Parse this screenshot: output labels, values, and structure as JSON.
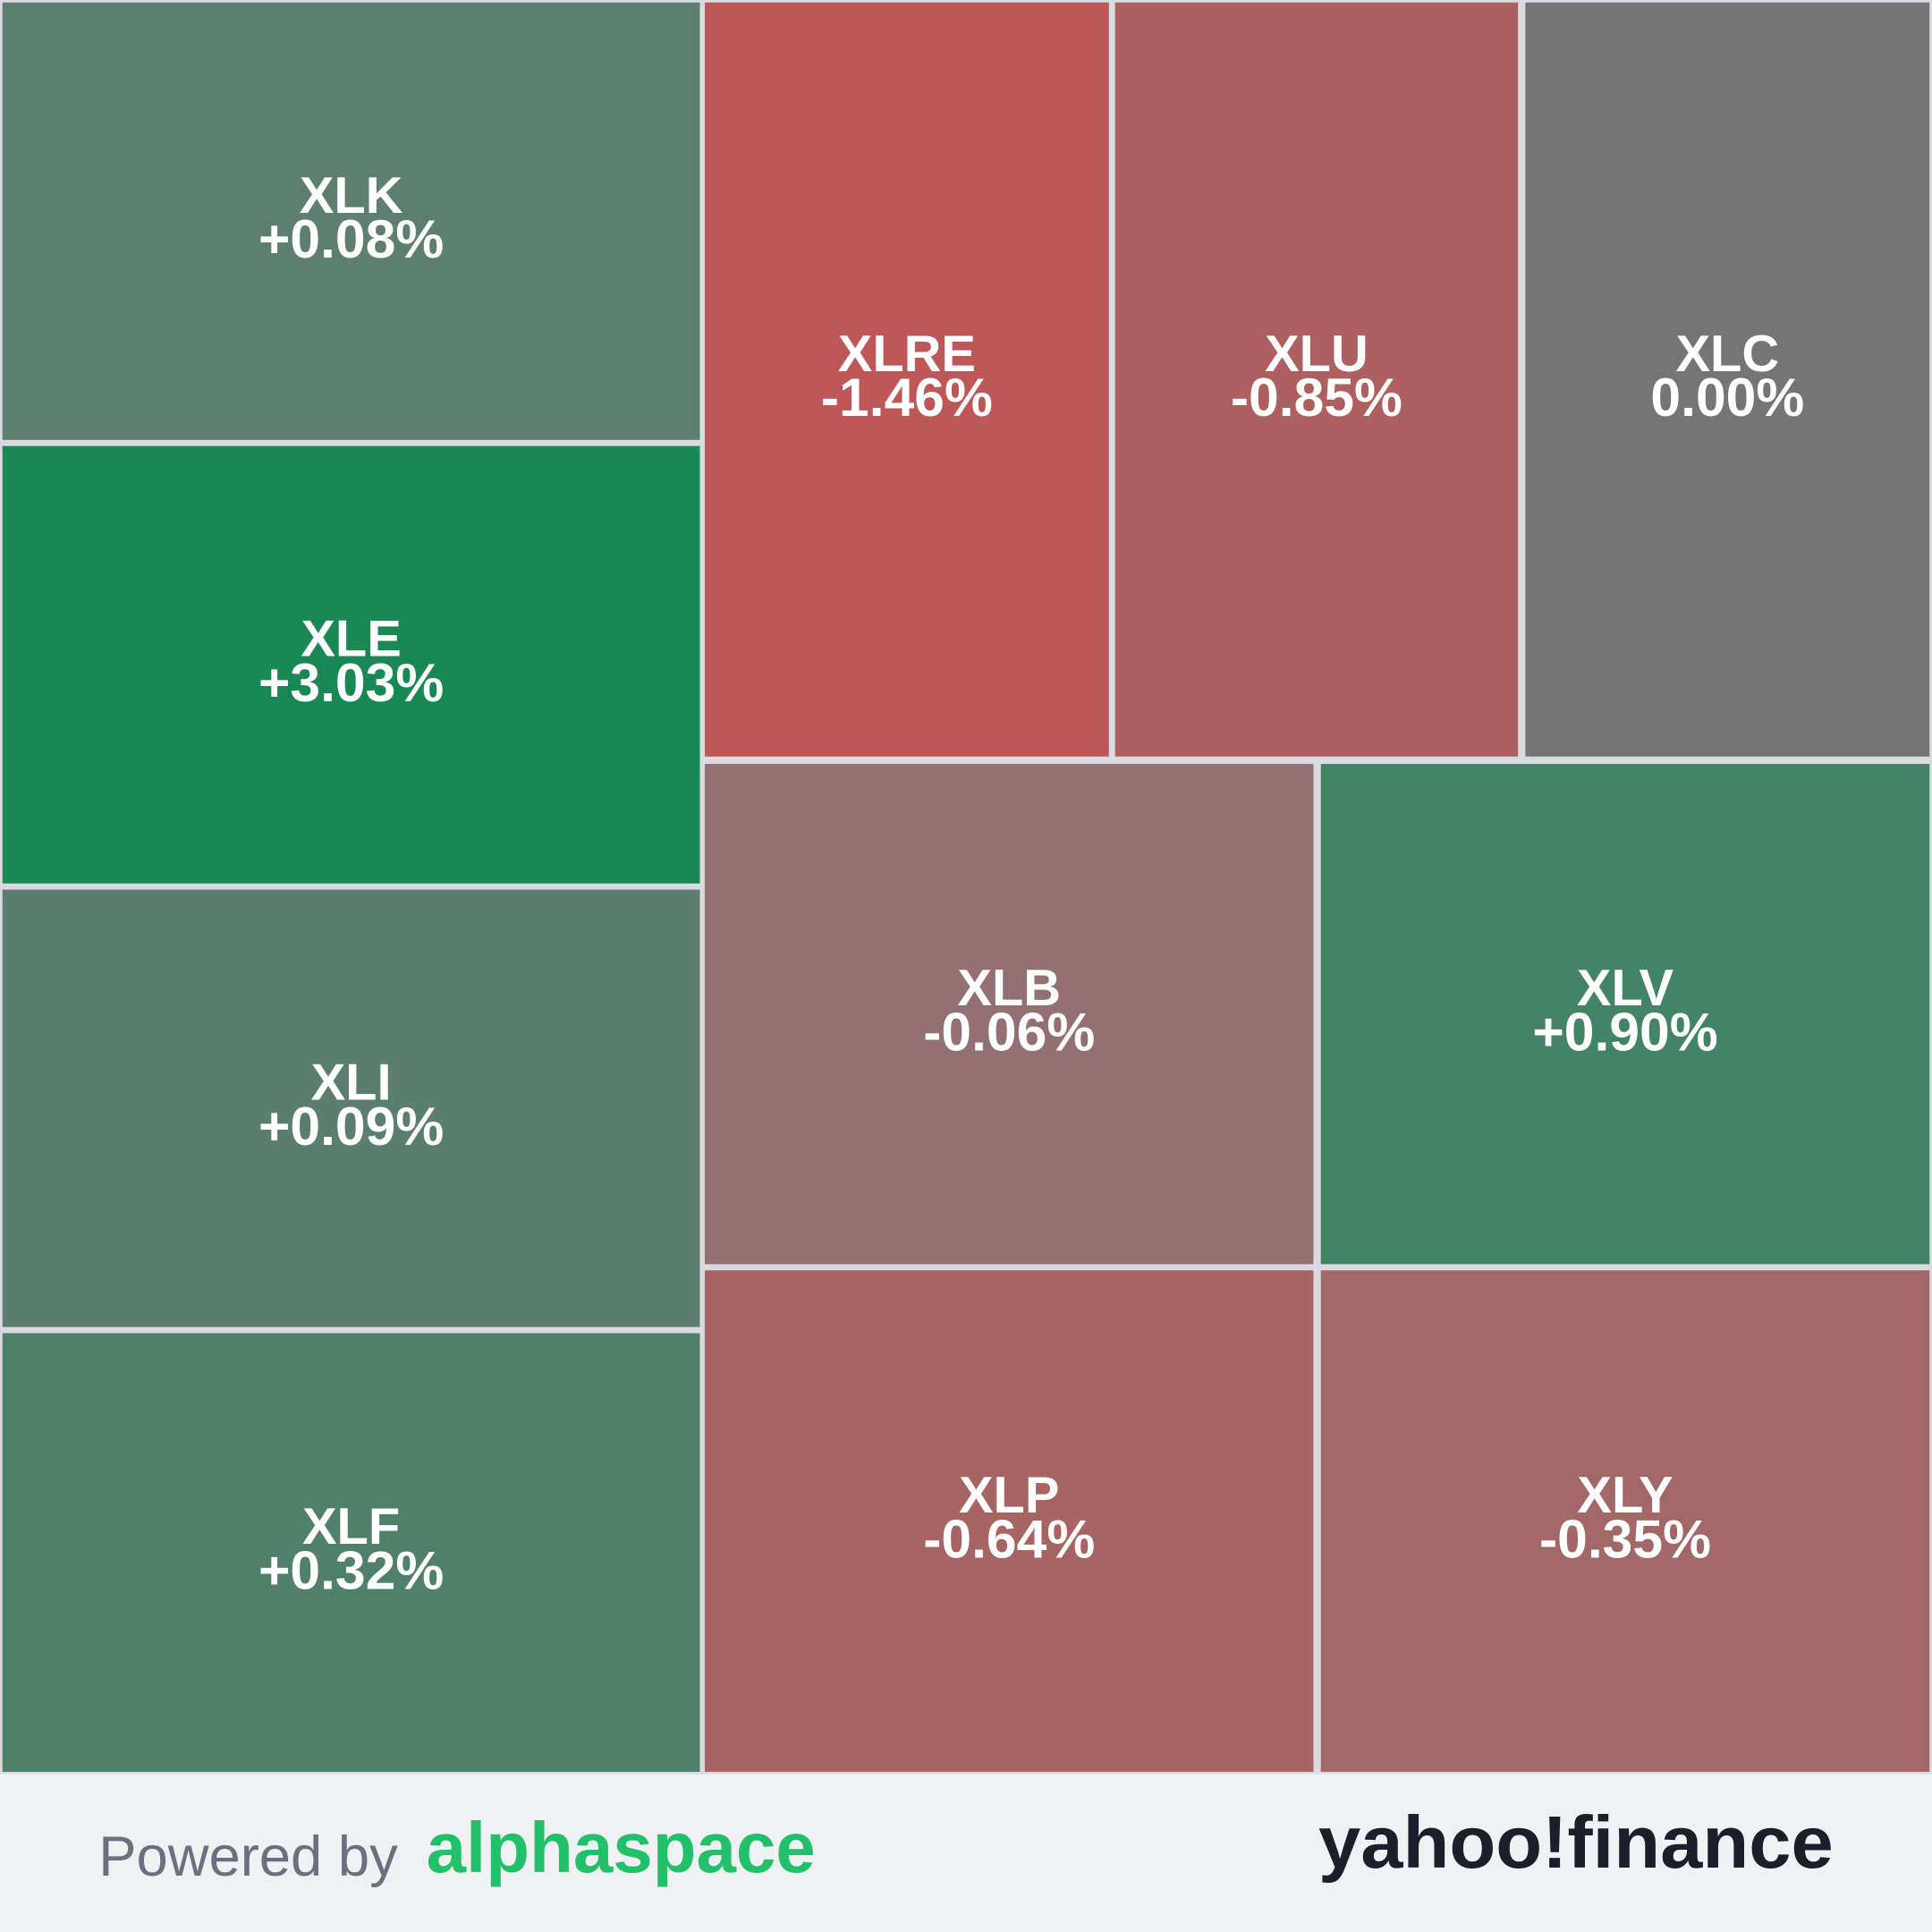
{
  "chart_data": {
    "type": "treemap",
    "categories": [
      "XLK",
      "XLE",
      "XLI",
      "XLF",
      "XLRE",
      "XLU",
      "XLC",
      "XLB",
      "XLV",
      "XLP",
      "XLY"
    ],
    "values": [
      0.08,
      3.03,
      0.09,
      0.32,
      -1.46,
      -0.85,
      0.0,
      -0.06,
      0.9,
      -0.64,
      -0.35
    ],
    "value_labels": [
      "+0.08%",
      "+3.03%",
      "+0.09%",
      "+0.32%",
      "-1.46%",
      "-0.85%",
      "0.00%",
      "-0.06%",
      "+0.90%",
      "-0.64%",
      "-0.35%"
    ],
    "colors": [
      "#5e7f6f",
      "#1a8854",
      "#5c7e6e",
      "#507f6a",
      "#be5757",
      "#ae6060",
      "#757575",
      "#937071",
      "#438466",
      "#a86363",
      "#a26868"
    ]
  },
  "footer": {
    "powered_by": "Powered by",
    "brand": "alphaspace",
    "partner": "yahoo!finance"
  }
}
